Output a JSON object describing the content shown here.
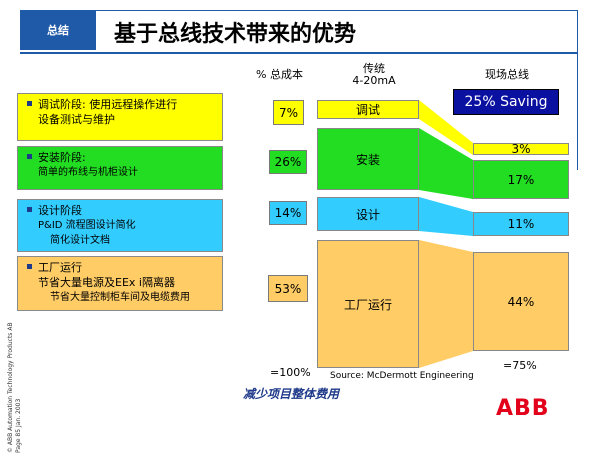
{
  "header": {
    "section_tab": "总结",
    "title": "基于总线技术带来的优势"
  },
  "left_items": [
    {
      "l1": "调试阶段: 使用远程操作进行",
      "l2": "设备测试与维护",
      "l3": ""
    },
    {
      "l1": "安装阶段:",
      "l2": "简单的布线与机柜设计",
      "l3": ""
    },
    {
      "l1": "设计阶段",
      "l2": "P&ID 流程图设计简化",
      "l3": "简化设计文档"
    },
    {
      "l1": "工厂运行",
      "l2": "节省大量电源及EEx i隔离器",
      "l3": "节省大量控制柜车间及电缆费用"
    }
  ],
  "columns": {
    "cost_pct_label": "% 总成本",
    "traditional_label": "传统",
    "traditional_sub": "4-20mA",
    "fieldbus_label": "现场总线"
  },
  "traditional": [
    {
      "phase": "调试",
      "pct": "7%"
    },
    {
      "phase": "安装",
      "pct": "26%"
    },
    {
      "phase": "设计",
      "pct": "14%"
    },
    {
      "phase": "工厂运行",
      "pct": "53%"
    }
  ],
  "fieldbus": [
    "3%",
    "17%",
    "11%",
    "44%"
  ],
  "totals": {
    "traditional": "=100%",
    "fieldbus": "=75%"
  },
  "saving_badge": "25% Saving",
  "source": "Source: McDermott Engineering",
  "footer": "减少项目整体费用",
  "copyright": "© ABB Automation Technology Products AB",
  "page_info": "Page 85     Jan. 2003",
  "logo": "ABB",
  "colors": {
    "accent": "#1f5aa8",
    "yellow": "#ffff00",
    "green": "#22dd22",
    "cyan": "#33ccff",
    "orange": "#ffcc66",
    "badge": "#0a10a0",
    "abb_red": "#e2001a"
  }
}
